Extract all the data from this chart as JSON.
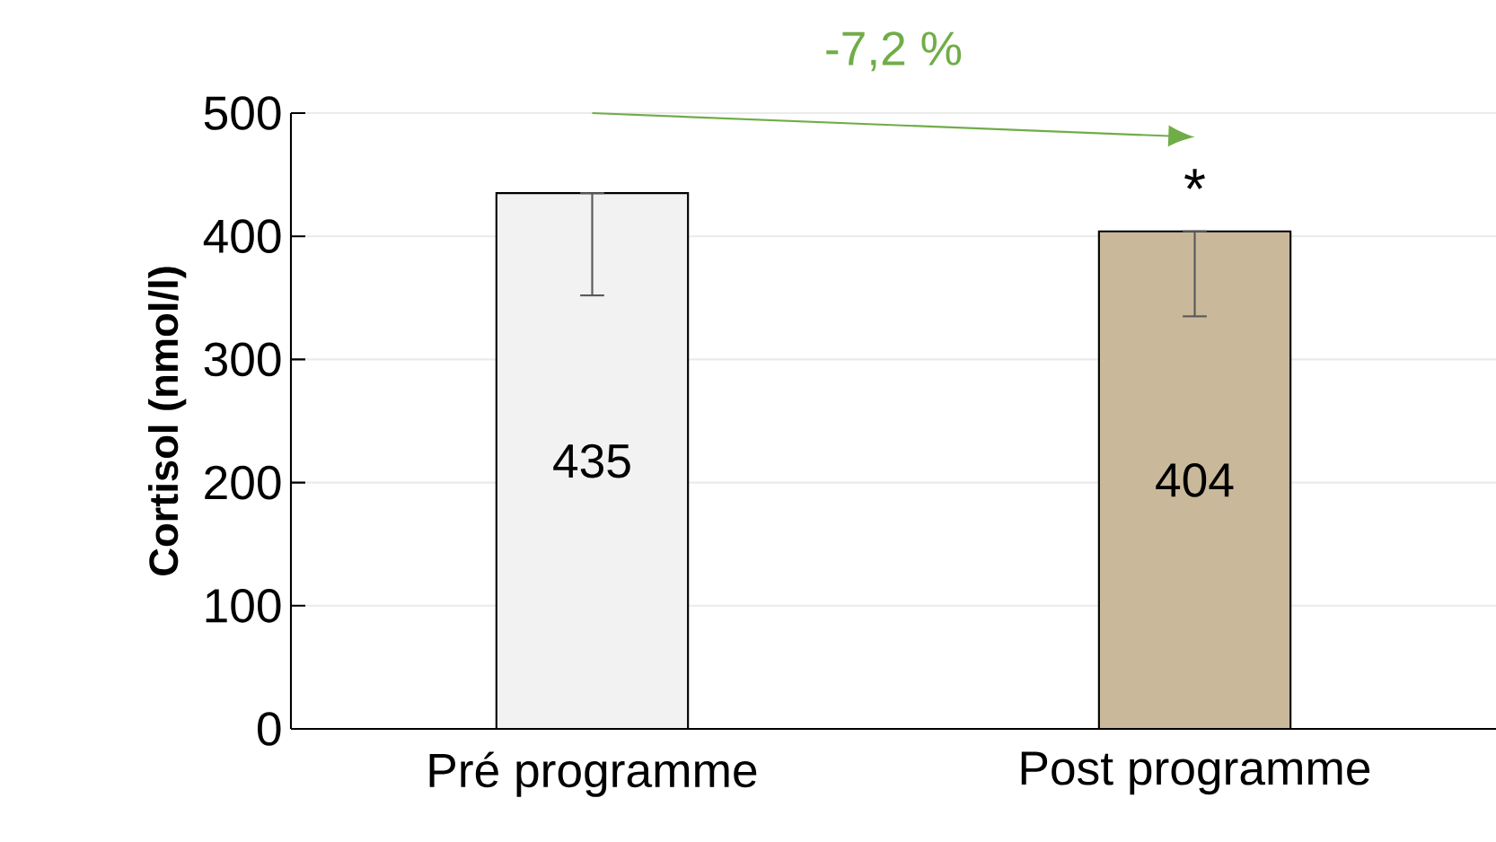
{
  "chart_data": {
    "type": "bar",
    "ylabel": "Cortisol (nmol/l)",
    "categories": [
      "Pré programme",
      "Post programme"
    ],
    "values": [
      435,
      404
    ],
    "colors": [
      "#f2f2f2",
      "#c9b99a"
    ],
    "errors": [
      [
        352,
        435
      ],
      [
        335,
        404
      ]
    ],
    "data_labels": true,
    "annotations": [
      "-7,2 %",
      {
        "text": "*",
        "x": "Post programme",
        "y": 404
      }
    ],
    "ylim": [
      0,
      500
    ],
    "yticks": [
      0,
      100,
      200,
      300,
      400,
      500
    ],
    "grid": "y"
  }
}
